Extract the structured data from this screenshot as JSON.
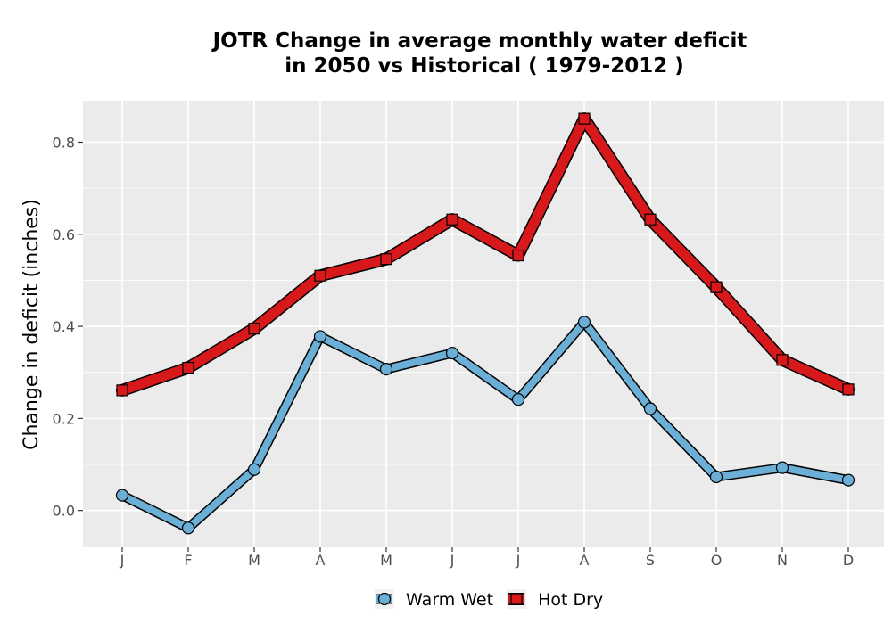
{
  "chart_data": {
    "type": "line",
    "title_line1": "JOTR  Change in average monthly water deficit",
    "title_line2": "in 2050 vs Historical ( 1979-2012 )",
    "xlabel": "",
    "ylabel": "Change in deficit (inches)",
    "categories": [
      "J",
      "F",
      "M",
      "A",
      "M",
      "J",
      "J",
      "A",
      "S",
      "O",
      "N",
      "D"
    ],
    "ylim": [
      -0.08,
      0.89
    ],
    "yticks": [
      0.0,
      0.2,
      0.4,
      0.6,
      0.8
    ],
    "ytick_labels": [
      "0.0",
      "0.2",
      "0.4",
      "0.6",
      "0.8"
    ],
    "grid": true,
    "legend_position": "bottom",
    "series": [
      {
        "name": "Warm Wet",
        "color": "#6baed6",
        "marker": "circle",
        "values": [
          0.033,
          -0.038,
          0.089,
          0.378,
          0.307,
          0.342,
          0.241,
          0.409,
          0.221,
          0.073,
          0.093,
          0.066
        ]
      },
      {
        "name": "Hot Dry",
        "color": "#d7191c",
        "marker": "square",
        "values": [
          0.261,
          0.31,
          0.395,
          0.51,
          0.546,
          0.632,
          0.554,
          0.851,
          0.632,
          0.485,
          0.327,
          0.263
        ]
      }
    ],
    "panel_background": "#ebebeb",
    "grid_color": "#ffffff"
  }
}
